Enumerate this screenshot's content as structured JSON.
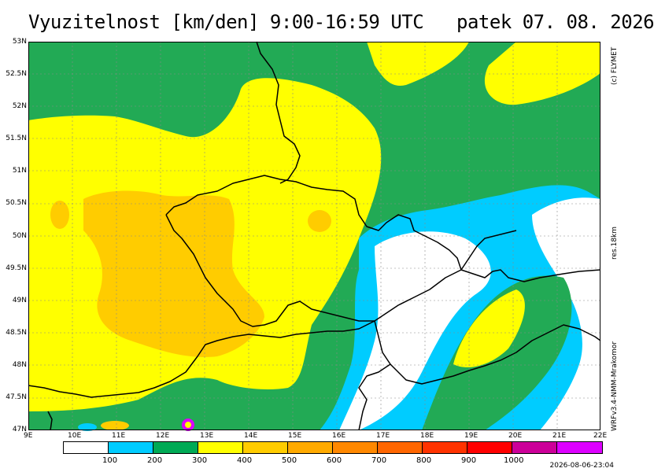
{
  "title": "Vyuzitelnost [km/den] 9:00-16:59 UTC   patek 07. 08. 2026",
  "copyright": "(c) FLYMET",
  "resolution": "res.18km",
  "model": "WRFv3.4-NMM-Mrakomor",
  "timestamp": "2026-08-06-23:04",
  "lat_labels": [
    "53N",
    "52.5N",
    "52N",
    "51.5N",
    "51N",
    "50.5N",
    "50N",
    "49.5N",
    "49N",
    "48.5N",
    "48N",
    "47.5N",
    "47N"
  ],
  "lon_labels": [
    "9E",
    "10E",
    "11E",
    "12E",
    "13E",
    "14E",
    "15E",
    "16E",
    "17E",
    "18E",
    "19E",
    "20E",
    "21E",
    "22E"
  ],
  "legend": {
    "colors": [
      "#ffffff",
      "#00ccff",
      "#00aa55",
      "#ffff00",
      "#ffcc00",
      "#ffaa00",
      "#ff8800",
      "#ff6600",
      "#ff3300",
      "#ff0000",
      "#cc0099",
      "#dd00ff"
    ],
    "labels": [
      "100",
      "200",
      "300",
      "400",
      "500",
      "600",
      "700",
      "800",
      "900",
      "1000"
    ]
  },
  "field_colors": {
    "green": "#22aa55",
    "yellow": "#ffff00",
    "orange": "#ffcc00",
    "cyan": "#00ccff",
    "white": "#ffffff"
  }
}
